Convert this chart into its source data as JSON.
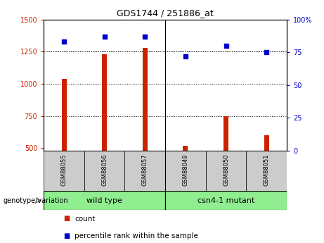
{
  "title": "GDS1744 / 251886_at",
  "samples": [
    "GSM88055",
    "GSM88056",
    "GSM88057",
    "GSM88049",
    "GSM88050",
    "GSM88051"
  ],
  "bar_values": [
    1040,
    1230,
    1280,
    520,
    750,
    600
  ],
  "dot_values": [
    83,
    87,
    87,
    72,
    80,
    75
  ],
  "ylim_left": [
    480,
    1500
  ],
  "ylim_right": [
    0,
    100
  ],
  "yticks_left": [
    500,
    750,
    1000,
    1250,
    1500
  ],
  "yticks_right": [
    0,
    25,
    50,
    75,
    100
  ],
  "bar_color": "#cc2200",
  "dot_color": "#0000cc",
  "wt_bg": "#90ee90",
  "mut_bg": "#90ee90",
  "sample_bg": "#cccccc",
  "legend_count_label": "count",
  "legend_pct_label": "percentile rank within the sample",
  "xlabel_label": "genotype/variation"
}
